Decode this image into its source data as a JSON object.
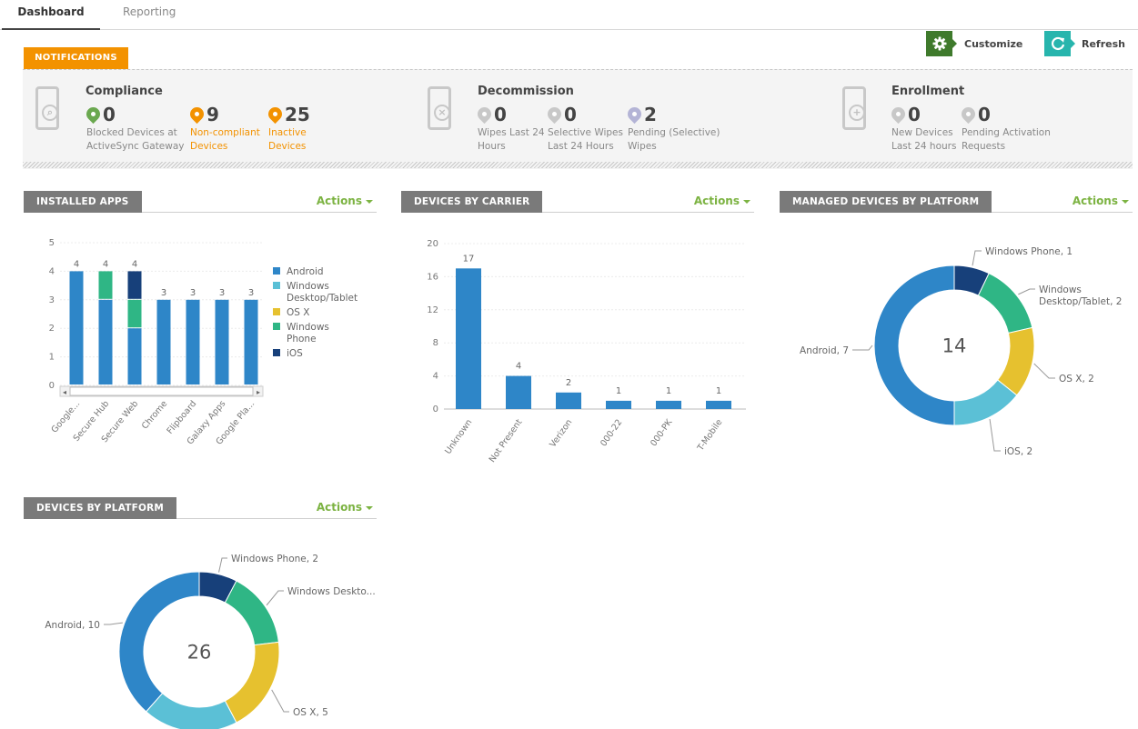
{
  "tabs": [
    {
      "label": "Dashboard",
      "active": true
    },
    {
      "label": "Reporting",
      "active": false
    }
  ],
  "toolbar": {
    "customize": {
      "label": "Customize",
      "icon": "gear-icon",
      "color": "#3f7a2c"
    },
    "refresh": {
      "label": "Refresh",
      "icon": "refresh-icon",
      "color": "#27b5ad"
    }
  },
  "notifications": {
    "tag": "NOTIFICATIONS",
    "tag_color": "#f39200",
    "sections": [
      {
        "title": "Compliance",
        "icon": "phone-search-icon",
        "metrics": [
          {
            "value": "0",
            "desc": [
              "Blocked Devices at",
              "ActiveSync Gateway"
            ],
            "marker_color": "#6aa84f",
            "alert": false
          },
          {
            "value": "9",
            "desc": [
              "Non-compliant",
              "Devices"
            ],
            "marker_color": "#f39200",
            "alert": true
          },
          {
            "value": "25",
            "desc": [
              "Inactive",
              "Devices"
            ],
            "marker_color": "#f39200",
            "alert": true
          }
        ]
      },
      {
        "title": "Decommission",
        "icon": "phone-wipe-icon",
        "metrics": [
          {
            "value": "0",
            "desc": [
              "Wipes Last 24",
              "Hours"
            ],
            "marker_color": "#c8c8c8",
            "alert": false
          },
          {
            "value": "0",
            "desc": [
              "Selective Wipes",
              "Last 24 Hours"
            ],
            "marker_color": "#c8c8c8",
            "alert": false
          },
          {
            "value": "2",
            "desc": [
              "Pending (Selective)",
              "Wipes"
            ],
            "marker_color": "#b4b4d6",
            "alert": false
          }
        ]
      },
      {
        "title": "Enrollment",
        "icon": "phone-add-icon",
        "metrics": [
          {
            "value": "0",
            "desc": [
              "New Devices",
              "Last 24 hours"
            ],
            "marker_color": "#c8c8c8",
            "alert": false
          },
          {
            "value": "0",
            "desc": [
              "Pending Activation",
              "Requests"
            ],
            "marker_color": "#c8c8c8",
            "alert": false
          }
        ]
      }
    ]
  },
  "colors": {
    "android": "#2e86c8",
    "windows_desktop": "#5bc0d6",
    "osx": "#e6c12f",
    "windows_phone": "#2fb685",
    "ios": "#17407a",
    "actions": "#7cb342"
  },
  "widgets": {
    "installed_apps": {
      "title": "INSTALLED APPS",
      "actions": "Actions"
    },
    "devices_by_carrier": {
      "title": "DEVICES BY CARRIER",
      "actions": "Actions"
    },
    "managed_by_platform": {
      "title": "MANAGED DEVICES BY PLATFORM",
      "actions": "Actions"
    },
    "devices_by_platform": {
      "title": "DEVICES BY PLATFORM",
      "actions": "Actions"
    }
  },
  "chart_data": [
    {
      "id": "installed_apps",
      "type": "bar",
      "stacked": true,
      "categories": [
        "Google...",
        "Secure Hub",
        "Secure Web",
        "Chrome",
        "Flipboard",
        "Galaxy Apps",
        "Google Pla..."
      ],
      "series": [
        {
          "name": "Android",
          "color": "#2e86c8",
          "values": [
            4,
            3,
            2,
            3,
            3,
            3,
            3
          ]
        },
        {
          "name": "Windows Desktop/Tablet",
          "color": "#5bc0d6",
          "values": [
            0,
            0,
            0,
            0,
            0,
            0,
            0
          ]
        },
        {
          "name": "OS X",
          "color": "#e6c12f",
          "values": [
            0,
            0,
            0,
            0,
            0,
            0,
            0
          ]
        },
        {
          "name": "Windows Phone",
          "color": "#2fb685",
          "values": [
            0,
            1,
            1,
            0,
            0,
            0,
            0
          ]
        },
        {
          "name": "iOS",
          "color": "#17407a",
          "values": [
            0,
            0,
            1,
            0,
            0,
            0,
            0
          ]
        }
      ],
      "totals": [
        4,
        4,
        4,
        3,
        3,
        3,
        3
      ],
      "yticks": [
        0,
        1,
        2,
        3,
        4,
        5
      ],
      "ylim": [
        0,
        5
      ],
      "legend": "right",
      "legend_lines": [
        [
          "Android"
        ],
        [
          "Windows",
          "Desktop/Tablet"
        ],
        [
          "OS X"
        ],
        [
          "Windows",
          "Phone"
        ],
        [
          "iOS"
        ]
      ],
      "grid": true
    },
    {
      "id": "devices_by_carrier",
      "type": "bar",
      "categories": [
        "Unknown",
        "Not Present",
        "Verizon",
        "000-22",
        "000-PK",
        "T-Mobile"
      ],
      "values": [
        17,
        4,
        2,
        1,
        1,
        1
      ],
      "color": "#2e86c8",
      "yticks": [
        0,
        4,
        8,
        12,
        16,
        20
      ],
      "ylim": [
        0,
        20
      ],
      "grid": true
    },
    {
      "id": "managed_by_platform",
      "type": "pie",
      "donut": true,
      "center_label": "14",
      "slices": [
        {
          "label": "Windows Phone, 1",
          "value": 1,
          "color": "#17407a"
        },
        {
          "label": "Windows Desktop/Tablet, 2",
          "label_lines": [
            "Windows",
            "Desktop/Tablet, 2"
          ],
          "value": 2,
          "color": "#2fb685"
        },
        {
          "label": "OS X, 2",
          "value": 2,
          "color": "#e6c12f"
        },
        {
          "label": "iOS, 2",
          "value": 2,
          "color": "#5bc0d6"
        },
        {
          "label": "Android, 7",
          "value": 7,
          "color": "#2e86c8"
        }
      ]
    },
    {
      "id": "devices_by_platform",
      "type": "pie",
      "donut": true,
      "center_label": "26",
      "slices": [
        {
          "label": "Windows Phone, 2",
          "value": 2,
          "color": "#17407a"
        },
        {
          "label": "Windows Deskto...",
          "value": 4,
          "color": "#2fb685"
        },
        {
          "label": "OS X, 5",
          "value": 5,
          "color": "#e6c12f"
        },
        {
          "label": "",
          "value": 5,
          "color": "#5bc0d6"
        },
        {
          "label": "Android, 10",
          "value": 10,
          "color": "#2e86c8"
        }
      ]
    }
  ]
}
